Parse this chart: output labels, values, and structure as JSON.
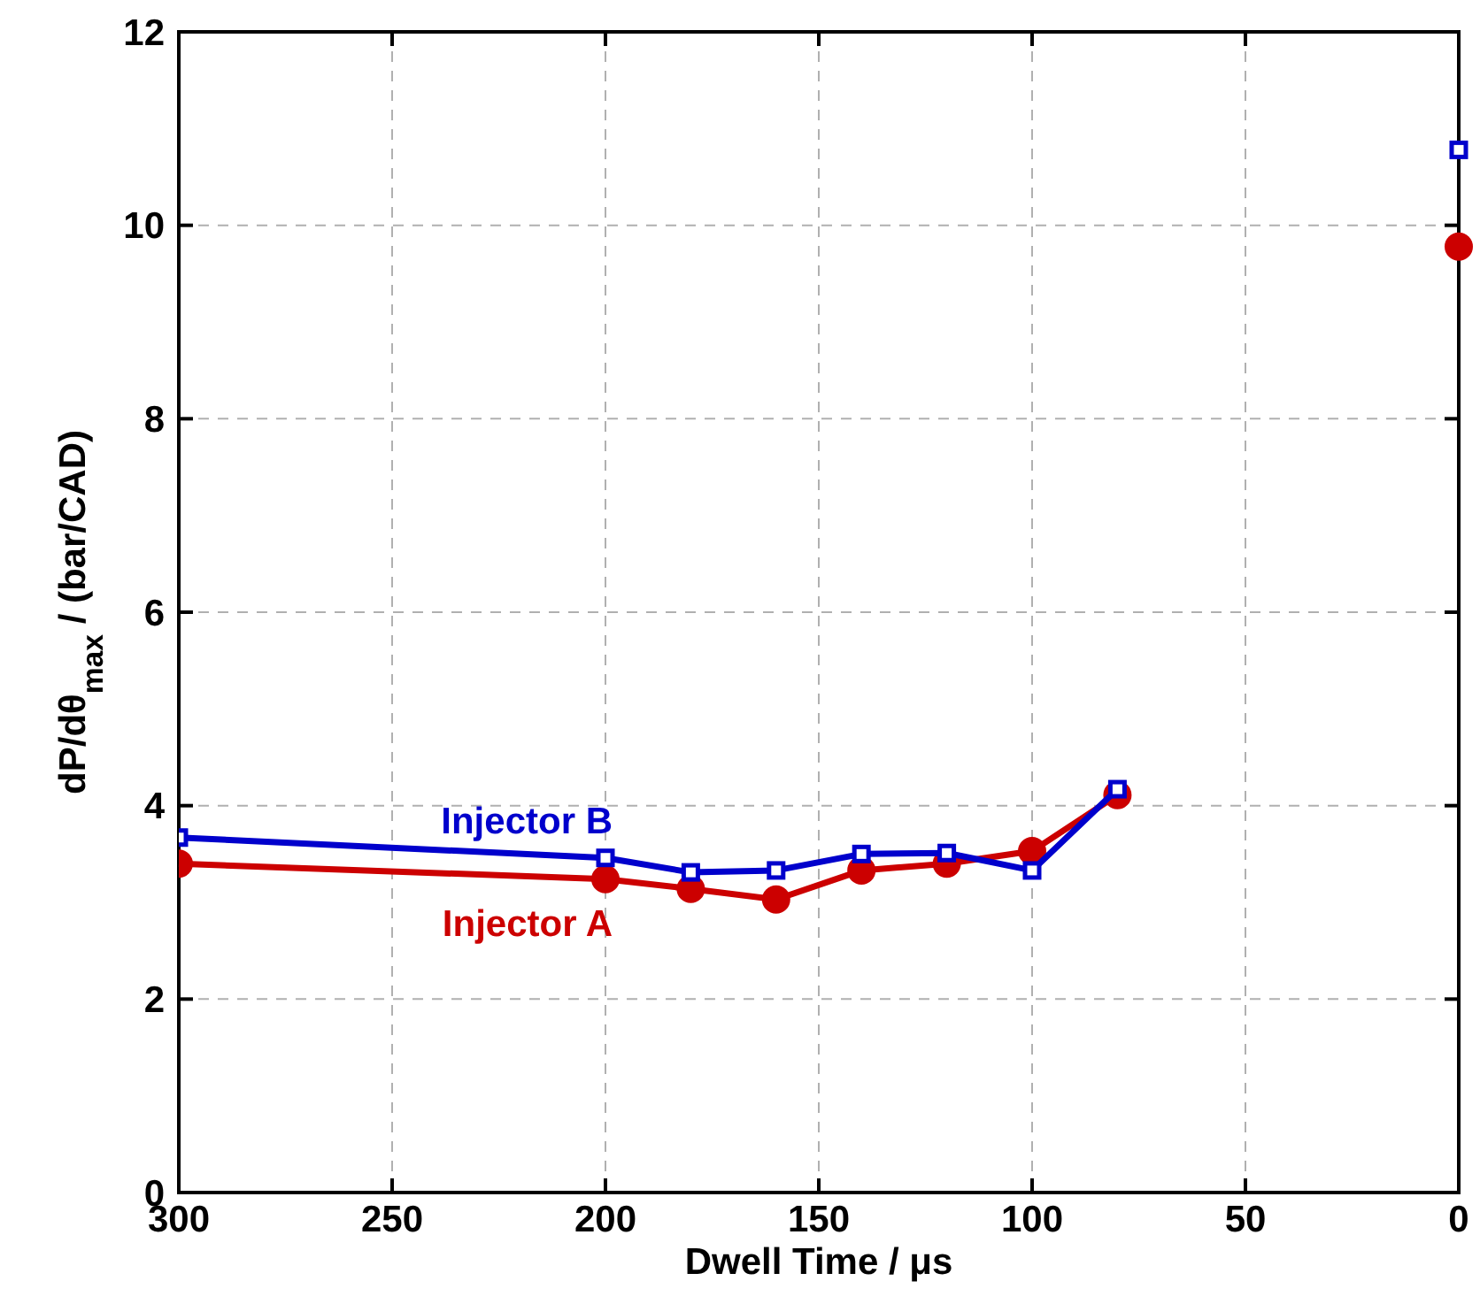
{
  "chart_data": {
    "type": "line",
    "xlabel": "Dwell Time / μs",
    "ylabel": "dP/dθ$_{max}$ / (bar/CAD)",
    "x": [
      300,
      200,
      180,
      160,
      140,
      120,
      100,
      80,
      40,
      0
    ],
    "xlim": [
      300,
      0
    ],
    "xticks": [
      300,
      250,
      200,
      150,
      100,
      50,
      0
    ],
    "ylim": [
      0,
      12
    ],
    "yticks": [
      0,
      2,
      4,
      6,
      8,
      10,
      12
    ],
    "grid": true,
    "line_style": "solid",
    "series": [
      {
        "name": "Injector A",
        "color": "#cc0000",
        "marker": "circle",
        "values": [
          3.4,
          3.24,
          3.14,
          3.03,
          3.33,
          3.4,
          3.53,
          4.11,
          null,
          9.78
        ]
      },
      {
        "name": "Injector B",
        "color": "#0000cc",
        "marker": "square",
        "values": [
          3.67,
          3.46,
          3.31,
          3.33,
          3.5,
          3.51,
          3.33,
          4.17,
          null,
          10.78
        ]
      }
    ]
  }
}
